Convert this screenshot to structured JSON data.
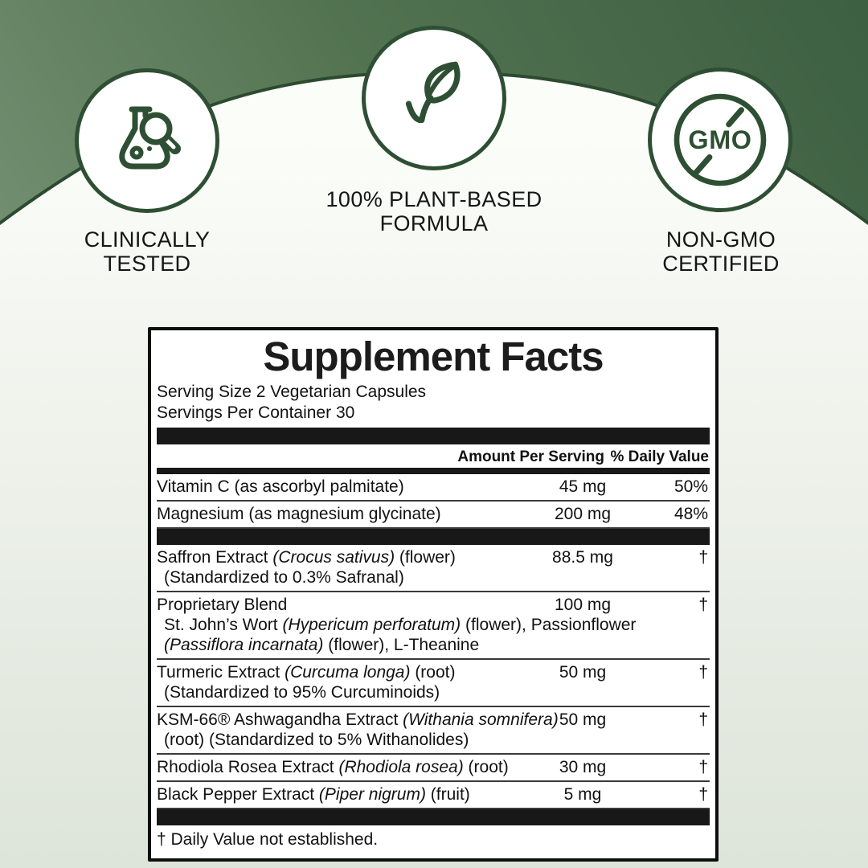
{
  "colors": {
    "accent_green": "#2e4f33",
    "arc_stroke": "#2c4a30",
    "top_gradient": [
      "#3d5f42",
      "#527350",
      "#7f997d"
    ],
    "dome_top": "#fbfdf9",
    "dome_bottom": "#dde4d9",
    "panel_border": "#0d0d0d",
    "bar_black": "#181818"
  },
  "badges": [
    {
      "icon": "flask-magnifier-icon",
      "caption": [
        "CLINICALLY",
        "TESTED"
      ]
    },
    {
      "icon": "leaf-check-icon",
      "caption": [
        "100% PLANT-BASED",
        "FORMULA"
      ]
    },
    {
      "icon": "no-gmo-icon",
      "icon_text": "GMO",
      "caption": [
        "NON-GMO",
        "CERTIFIED"
      ]
    }
  ],
  "panel": {
    "title": "Supplement Facts",
    "serving_size": "Serving Size 2 Vegetarian Capsules",
    "servings_per_container": "Servings Per Container 30",
    "columns": {
      "amount": "Amount Per Serving",
      "dv": "% Daily Value"
    },
    "rows": [
      {
        "name": [
          {
            "t": "Vitamin C (as ascorbyl palmitate)"
          }
        ],
        "amount": "45 mg",
        "dv": "50%"
      },
      {
        "name": [
          {
            "t": "Magnesium (as magnesium glycinate)"
          }
        ],
        "amount": "200 mg",
        "dv": "48%",
        "bar_after": true
      },
      {
        "name": [
          {
            "t": "Saffron Extract "
          },
          {
            "t": "(Crocus sativus)",
            "i": true
          },
          {
            "t": " (flower)"
          }
        ],
        "subs": [
          [
            {
              "t": "(Standardized to 0.3% Safranal)"
            }
          ]
        ],
        "amount": "88.5 mg",
        "dv": "†"
      },
      {
        "name": [
          {
            "t": "Proprietary Blend"
          }
        ],
        "subs": [
          [
            {
              "t": "St. John’s Wort "
            },
            {
              "t": "(Hypericum perforatum)",
              "i": true
            },
            {
              "t": " (flower), Passionflower"
            }
          ],
          [
            {
              "t": "(Passiflora incarnata)",
              "i": true
            },
            {
              "t": " (flower), L-Theanine"
            }
          ]
        ],
        "amount": "100 mg",
        "dv": "†"
      },
      {
        "name": [
          {
            "t": "Turmeric Extract "
          },
          {
            "t": "(Curcuma longa)",
            "i": true
          },
          {
            "t": " (root)"
          }
        ],
        "subs": [
          [
            {
              "t": "(Standardized to 95% Curcuminoids)"
            }
          ]
        ],
        "amount": "50 mg",
        "dv": "†"
      },
      {
        "name": [
          {
            "t": "KSM-66® Ashwagandha Extract "
          },
          {
            "t": "(Withania somnifera)",
            "i": true
          }
        ],
        "subs": [
          [
            {
              "t": "(root) (Standardized to 5% Withanolides)"
            }
          ]
        ],
        "amount": "50 mg",
        "dv": "†"
      },
      {
        "name": [
          {
            "t": "Rhodiola Rosea Extract "
          },
          {
            "t": "(Rhodiola rosea)",
            "i": true
          },
          {
            "t": " (root)"
          }
        ],
        "amount": "30 mg",
        "dv": "†"
      },
      {
        "name": [
          {
            "t": "Black Pepper Extract "
          },
          {
            "t": "(Piper nigrum)",
            "i": true
          },
          {
            "t": " (fruit)"
          }
        ],
        "amount": "5 mg",
        "dv": "†",
        "bar_after": true
      }
    ],
    "footnote": "† Daily Value not established."
  }
}
